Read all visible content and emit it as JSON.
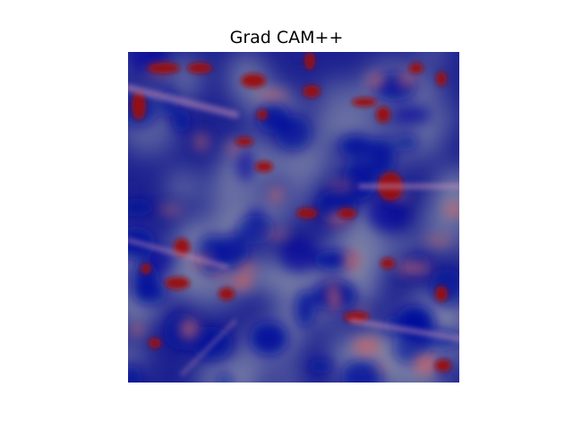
{
  "figure": {
    "title": "Grad CAM++"
  },
  "heatmap": {
    "colormap": "jet-overlay",
    "colors": {
      "low": "#000a9c",
      "mid": "#7f86a8",
      "high": "#9a0d12",
      "warm": "#c8666a",
      "streak": "#c58fb8"
    }
  }
}
